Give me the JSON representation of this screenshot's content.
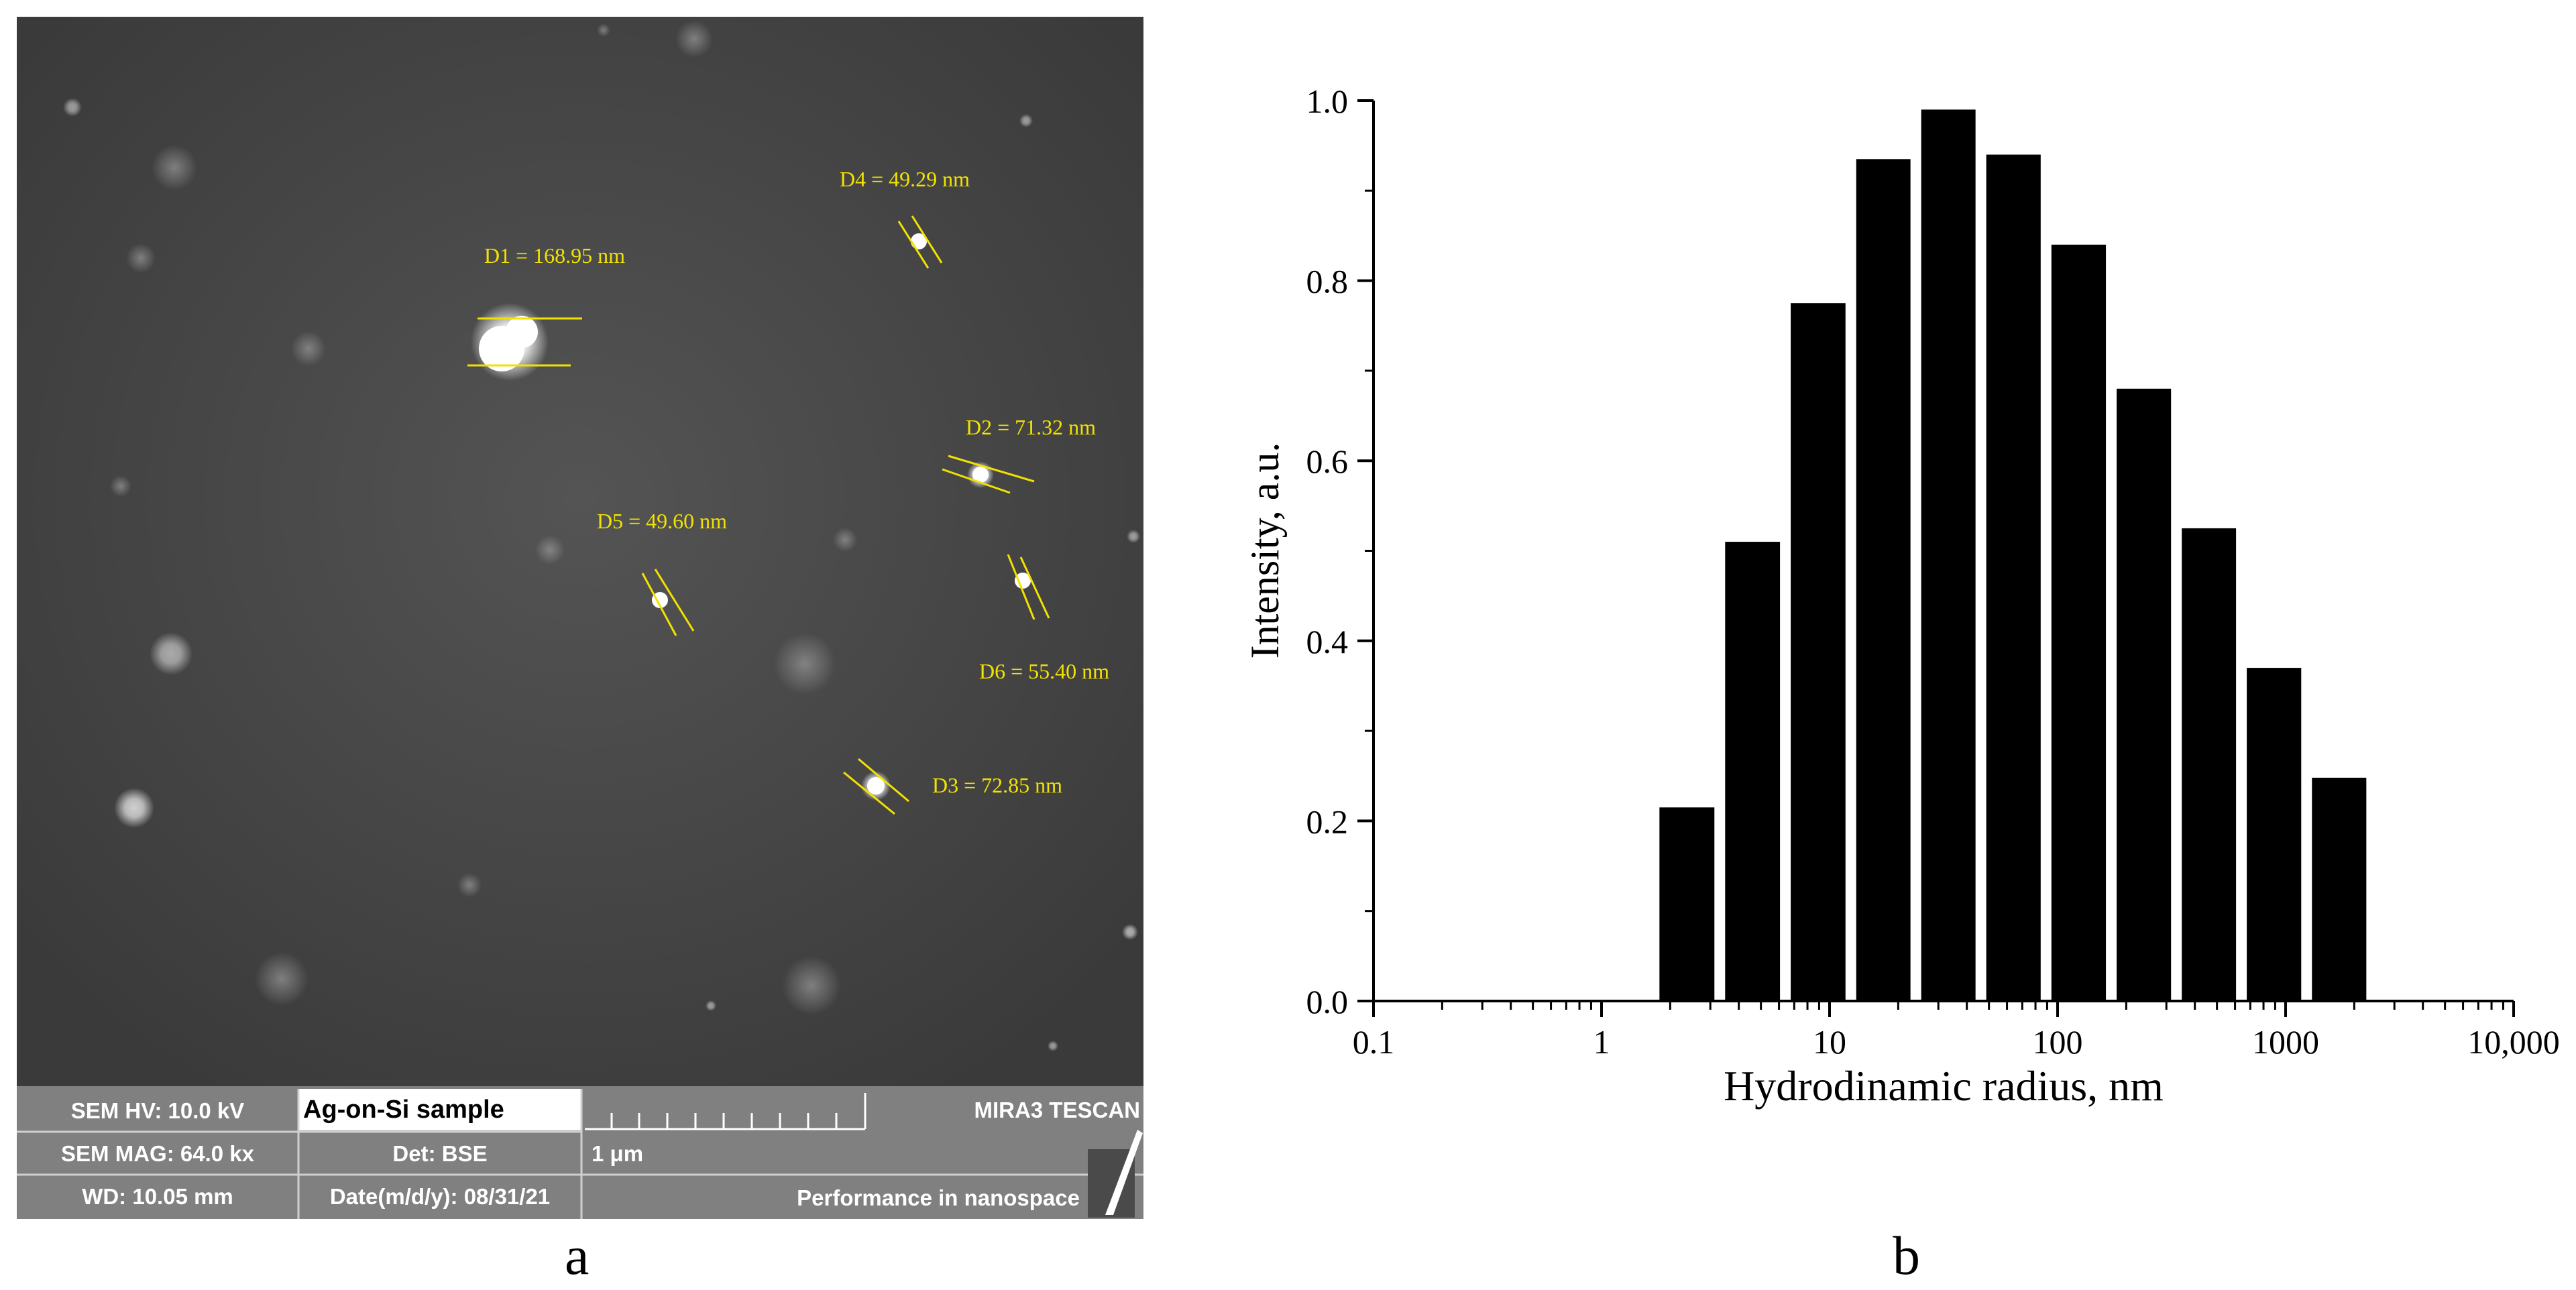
{
  "panel_a": {
    "letter": "a",
    "annotations": [
      {
        "label": "D1 = 168.95 nm"
      },
      {
        "label": "D2 = 71.32 nm"
      },
      {
        "label": "D3 = 72.85 nm"
      },
      {
        "label": "D4 = 49.29 nm"
      },
      {
        "label": "D5 = 49.60 nm"
      },
      {
        "label": "D6 = 55.40 nm"
      }
    ],
    "info_bar": {
      "hv": "SEM HV: 10.0 kV",
      "sample": "Ag-on-Si sample",
      "instrument": "MIRA3 TESCAN",
      "mag": "SEM MAG: 64.0 kx",
      "det": "Det: BSE",
      "scale": "1 μm",
      "wd": "WD: 10.05 mm",
      "date": "Date(m/d/y): 08/31/21",
      "slogan": "Performance in nanospace"
    },
    "colors": {
      "annotation": "#f2e200",
      "info_bar": "#808080",
      "image_bg": "#4a4a4a"
    }
  },
  "panel_b": {
    "letter": "b"
  },
  "chart_data": {
    "type": "bar",
    "xlabel": "Hydrodinamic radius, nm",
    "ylabel": "Intensity, a.u.",
    "xscale": "log",
    "xlim": [
      0.1,
      10000
    ],
    "ylim": [
      0,
      1.0
    ],
    "x_ticks": [
      "0.1",
      "1",
      "10",
      "100",
      "1000",
      "10,000"
    ],
    "y_ticks": [
      "0.0",
      "0.2",
      "0.4",
      "0.6",
      "0.8",
      "1.0"
    ],
    "x": [
      2.3,
      4.5,
      8.7,
      16.8,
      32.5,
      62.5,
      121,
      233,
      450,
      870,
      1680
    ],
    "bar_edges": [
      1.7,
      3.3,
      6.4,
      12.4,
      23.9,
      46.1,
      89,
      172,
      332,
      640,
      1236,
      2385
    ],
    "values": [
      0.215,
      0.51,
      0.775,
      0.935,
      0.99,
      0.94,
      0.84,
      0.68,
      0.525,
      0.37,
      0.248
    ],
    "bar_color": "#000000",
    "grid": false
  }
}
